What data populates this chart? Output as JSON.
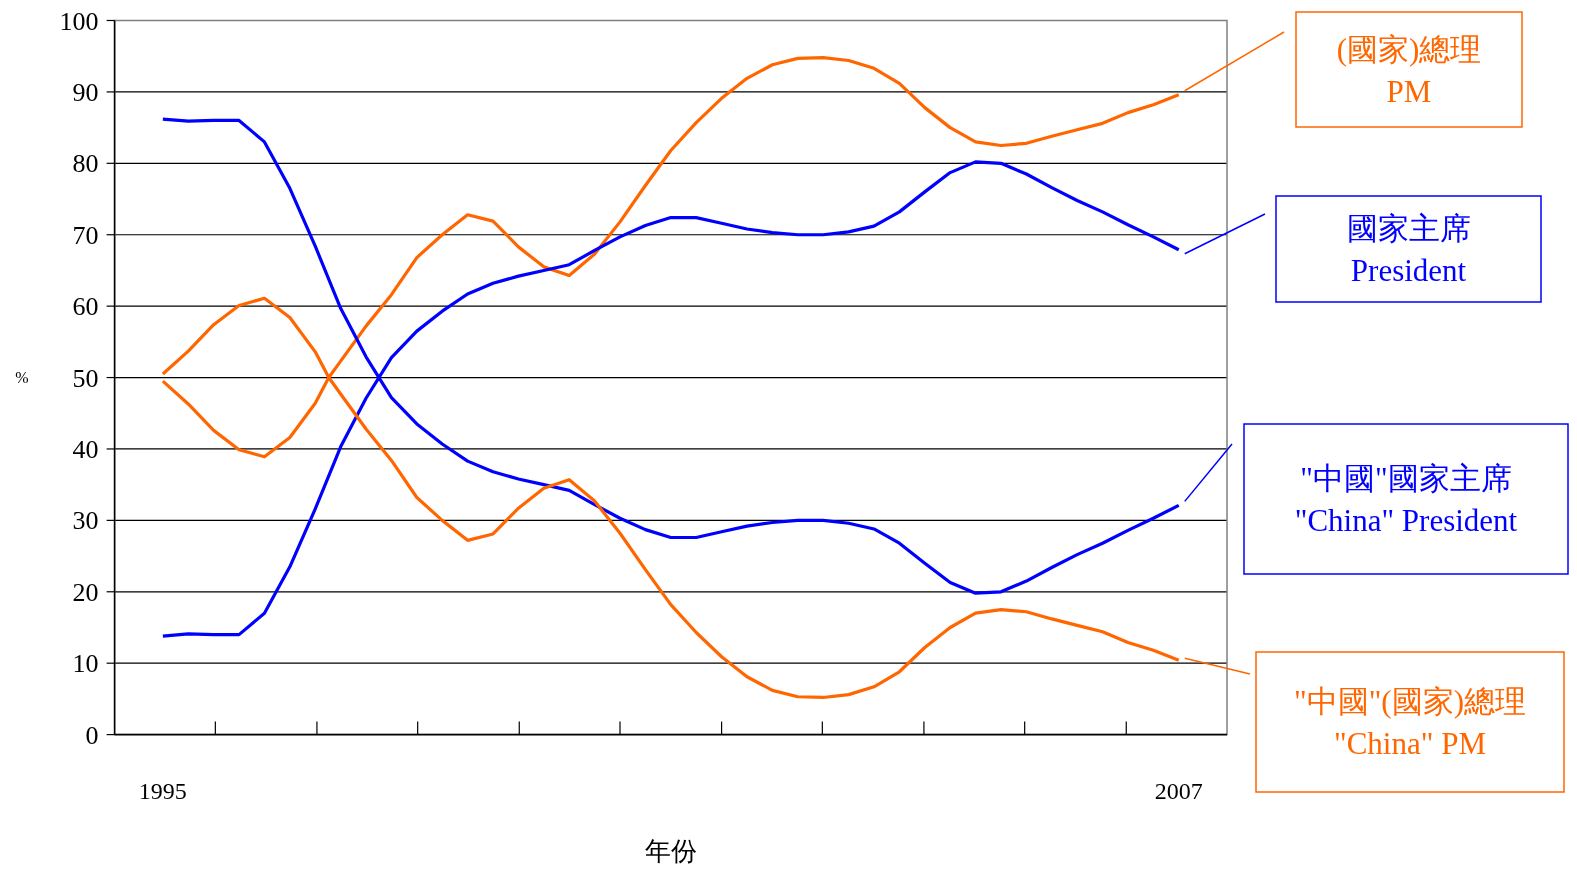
{
  "chart_data": {
    "type": "line",
    "xlabel": "年份",
    "ylabel": "%",
    "xlim": [
      1994.43,
      2007.57
    ],
    "ylim": [
      0,
      100
    ],
    "xticks": [
      {
        "value": 1995,
        "label": "1995"
      },
      {
        "value": 1995.62,
        "label": null
      },
      {
        "value": 1996.82,
        "label": null
      },
      {
        "value": 1998.01,
        "label": null
      },
      {
        "value": 1999.21,
        "label": null
      },
      {
        "value": 2000.4,
        "label": null
      },
      {
        "value": 2001.6,
        "label": null
      },
      {
        "value": 2002.79,
        "label": null
      },
      {
        "value": 2003.99,
        "label": null
      },
      {
        "value": 2005.18,
        "label": null
      },
      {
        "value": 2006.38,
        "label": null
      },
      {
        "value": 2007,
        "label": "2007"
      }
    ],
    "yticks": [
      0,
      10,
      20,
      30,
      40,
      50,
      60,
      70,
      80,
      90,
      100
    ],
    "grid": "y",
    "legend": "right",
    "marker": "none",
    "line_style": "solid",
    "x": [
      1995,
      1995.3,
      1995.6,
      1995.9,
      1996.2,
      1996.5,
      1996.8,
      1997.1,
      1997.4,
      1997.7,
      1998,
      1998.3,
      1998.6,
      1998.9,
      1999.2,
      1999.5,
      1999.8,
      2000.1,
      2000.4,
      2000.7,
      2001,
      2001.3,
      2001.6,
      2001.9,
      2002.2,
      2002.5,
      2002.8,
      2003.1,
      2003.4,
      2003.7,
      2004,
      2004.3,
      2004.6,
      2004.9,
      2005.2,
      2005.5,
      2005.8,
      2006.1,
      2006.4,
      2006.7,
      2007
    ],
    "series": [
      {
        "name": "(國家)總理\nPM",
        "color": "#ff6600",
        "x": [
          1995,
          1995.3,
          1995.6,
          1995.9,
          1996.2,
          1996.5,
          1996.8,
          1996.96,
          1997.1,
          1997.4,
          1997.7,
          1998,
          1998.3,
          1998.6,
          1998.9,
          1999.2,
          1999.5,
          1999.8,
          2000.1,
          2000.4,
          2000.7,
          2001,
          2001.3,
          2001.6,
          2001.9,
          2002.2,
          2002.5,
          2002.8,
          2003.1,
          2003.4,
          2003.7,
          2004,
          2004.3,
          2004.6,
          2004.9,
          2005.2,
          2005.5,
          2005.8,
          2006.1,
          2006.4,
          2006.7,
          2007
        ],
        "values": [
          50.5,
          53.7,
          57.4,
          60.1,
          61.1,
          58.4,
          53.6,
          50.0,
          52.3,
          57.2,
          61.6,
          66.8,
          70.0,
          72.8,
          71.9,
          68.3,
          65.5,
          64.3,
          67.3,
          71.8,
          76.9,
          81.8,
          85.7,
          89.1,
          91.9,
          93.8,
          94.7,
          94.8,
          94.4,
          93.3,
          91.2,
          87.8,
          85.0,
          83.0,
          82.5,
          82.8,
          83.8,
          84.7,
          85.6,
          87.1,
          88.2,
          89.6
        ]
      },
      {
        "name": "國家主席\nPresident",
        "color": "#0000ff",
        "values": [
          13.8,
          14.1,
          14.0,
          14.0,
          17.0,
          23.5,
          31.6,
          40.3,
          47.1,
          52.8,
          56.5,
          59.3,
          61.7,
          63.2,
          64.2,
          65.0,
          65.8,
          67.8,
          69.7,
          71.3,
          72.4,
          72.4,
          71.6,
          70.8,
          70.3,
          70.0,
          70.0,
          70.4,
          71.2,
          73.2,
          76.0,
          78.7,
          80.2,
          80.0,
          78.5,
          76.6,
          74.8,
          73.2,
          71.4,
          69.7,
          67.9
        ]
      },
      {
        "name": "\"中國\"國家主席\n\"China\" President",
        "color": "#0000ff",
        "values": [
          86.2,
          85.9,
          86.0,
          86.0,
          83.0,
          76.5,
          68.4,
          59.7,
          52.9,
          47.2,
          43.5,
          40.7,
          38.3,
          36.8,
          35.8,
          35.0,
          34.2,
          32.2,
          30.3,
          28.7,
          27.6,
          27.6,
          28.4,
          29.2,
          29.7,
          30.0,
          30.0,
          29.6,
          28.8,
          26.8,
          24.0,
          21.3,
          19.8,
          20.0,
          21.5,
          23.4,
          25.2,
          26.8,
          28.6,
          30.3,
          32.1
        ]
      },
      {
        "name": "\"中國\"(國家)總理\n\"China\" PM",
        "color": "#ff6600",
        "x": [
          1995,
          1995.3,
          1995.6,
          1995.9,
          1996.2,
          1996.5,
          1996.8,
          1996.96,
          1997.1,
          1997.4,
          1997.7,
          1998,
          1998.3,
          1998.6,
          1998.9,
          1999.2,
          1999.5,
          1999.8,
          2000.1,
          2000.4,
          2000.7,
          2001,
          2001.3,
          2001.6,
          2001.9,
          2002.2,
          2002.5,
          2002.8,
          2003.1,
          2003.4,
          2003.7,
          2004,
          2004.3,
          2004.6,
          2004.9,
          2005.2,
          2005.5,
          2005.8,
          2006.1,
          2006.4,
          2006.7,
          2007
        ],
        "values": [
          49.5,
          46.3,
          42.6,
          39.9,
          38.9,
          41.6,
          46.4,
          50.0,
          47.7,
          42.8,
          38.4,
          33.2,
          30.0,
          27.2,
          28.1,
          31.7,
          34.5,
          35.7,
          32.7,
          28.2,
          23.1,
          18.2,
          14.3,
          10.9,
          8.1,
          6.2,
          5.3,
          5.2,
          5.6,
          6.7,
          8.8,
          12.2,
          15.0,
          17.0,
          17.5,
          17.2,
          16.2,
          15.3,
          14.4,
          12.9,
          11.8,
          10.4
        ]
      }
    ]
  }
}
